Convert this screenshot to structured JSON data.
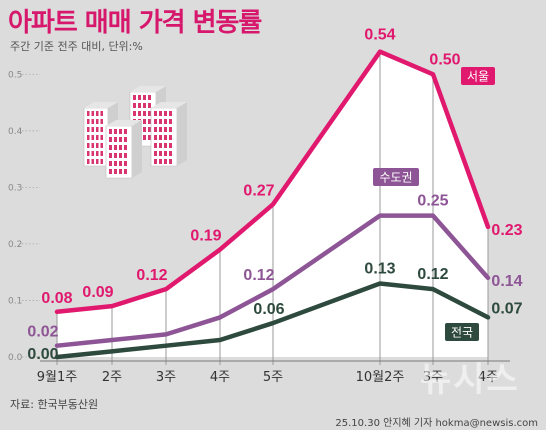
{
  "title": "아파트 매매 가격 변동률",
  "subtitle": "주간 기준 전주 대비, 단위:%",
  "source": "자료: 한국부동산원",
  "credit": "25.10.30 안지혜 기자 hokma@newsis.com",
  "watermark": "뉴시스",
  "colors": {
    "seoul": "#e0186e",
    "capital": "#8e5596",
    "national": "#2e4a3e",
    "badge_seoul": "#e0186e",
    "badge_capital": "#8e5596",
    "badge_national": "#2e4a3e"
  },
  "chart_data": {
    "type": "line",
    "categories": [
      "9월1주",
      "2주",
      "3주",
      "4주",
      "5주",
      "10월2주",
      "3주",
      "4주"
    ],
    "ylim": [
      0,
      0.55
    ],
    "yticks": [
      "0.0",
      "0.1",
      "0.2",
      "0.3",
      "0.4",
      "0.5"
    ],
    "series": [
      {
        "name": "서울",
        "key": "seoul",
        "values": [
          0.08,
          0.09,
          0.12,
          0.19,
          0.27,
          0.54,
          0.5,
          0.23
        ],
        "labels": [
          "0.08",
          "0.09",
          "0.12",
          "0.19",
          "0.27",
          "0.54",
          "0.50",
          "0.23"
        ]
      },
      {
        "name": "수도권",
        "key": "capital",
        "values": [
          0.02,
          0.03,
          0.04,
          0.07,
          0.12,
          0.25,
          0.25,
          0.14
        ],
        "labels": [
          "0.02",
          "",
          "",
          "",
          "0.12",
          "",
          "0.25",
          "0.14"
        ]
      },
      {
        "name": "전국",
        "key": "national",
        "values": [
          0.0,
          0.01,
          0.02,
          0.03,
          0.06,
          0.13,
          0.12,
          0.07
        ],
        "labels": [
          "0.00",
          "",
          "",
          "",
          "0.06",
          "0.13",
          "0.12",
          "0.07"
        ]
      }
    ]
  }
}
